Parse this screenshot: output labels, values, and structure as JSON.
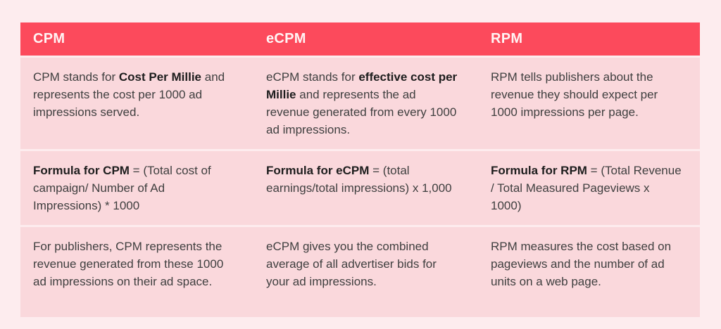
{
  "table": {
    "colors": {
      "page_bg": "#fdecee",
      "header_bg": "#fc4a5c",
      "header_text": "#fff4f4",
      "row_bg": "#fad8dc",
      "text": "#3f3f3f",
      "bold_text": "#1d1d1d"
    },
    "headers": [
      "CPM",
      "eCPM",
      "RPM"
    ],
    "rows": [
      {
        "cells": [
          [
            {
              "t": "CPM stands for ",
              "b": false
            },
            {
              "t": "Cost Per Millie",
              "b": true
            },
            {
              "t": " and represents the cost per 1000 ad impressions served.",
              "b": false
            }
          ],
          [
            {
              "t": "eCPM stands for ",
              "b": false
            },
            {
              "t": "effective cost per Millie",
              "b": true
            },
            {
              "t": " and represents the ad revenue generated from every 1000 ad impressions.",
              "b": false
            }
          ],
          [
            {
              "t": "RPM tells publishers about the revenue they should expect per 1000 impressions per page.",
              "b": false
            }
          ]
        ]
      },
      {
        "cells": [
          [
            {
              "t": "Formula for CPM",
              "b": true
            },
            {
              "t": " = (Total cost of campaign/ Number of Ad Impressions) * 1000",
              "b": false
            }
          ],
          [
            {
              "t": "Formula for eCPM",
              "b": true
            },
            {
              "t": " = (total earnings/total impressions) x 1,000",
              "b": false
            }
          ],
          [
            {
              "t": "Formula for RPM",
              "b": true
            },
            {
              "t": " = (Total Revenue / Total Measured Pageviews x 1000)",
              "b": false
            }
          ]
        ]
      },
      {
        "cells": [
          [
            {
              "t": "For publishers, CPM represents the revenue generated from these 1000 ad impressions on their ad space.",
              "b": false
            }
          ],
          [
            {
              "t": "eCPM gives you the combined average of all advertiser bids for your ad impressions.",
              "b": false
            }
          ],
          [
            {
              "t": "RPM measures the cost based on pageviews and the number of ad units on a web page.",
              "b": false
            }
          ]
        ]
      }
    ]
  }
}
